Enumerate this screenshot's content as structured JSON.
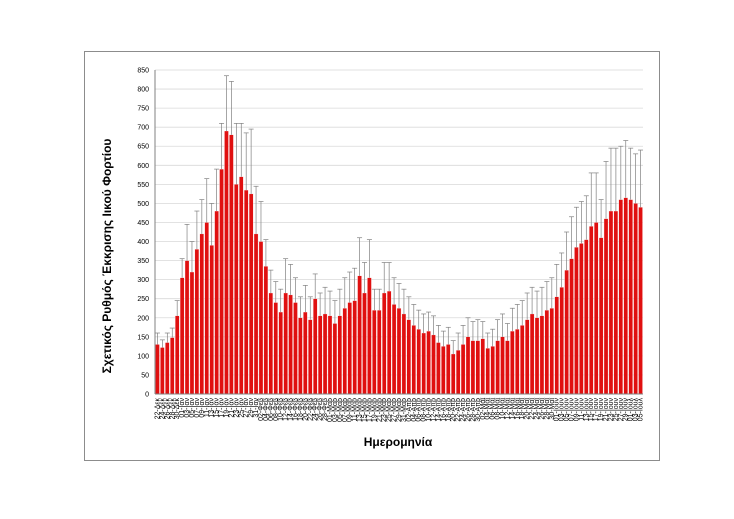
{
  "chart_data": {
    "type": "bar",
    "title": "",
    "xlabel": "Ημερομηνία",
    "ylabel": "Σχετικός Ρυθμός Έκκρισης Ιικού Φορτίου",
    "ylim": [
      0,
      850
    ],
    "yticks": [
      0,
      50,
      100,
      150,
      200,
      250,
      300,
      350,
      400,
      450,
      500,
      550,
      600,
      650,
      700,
      750,
      800,
      850
    ],
    "grid": true,
    "legend": "none",
    "error_bars": true,
    "colors": {
      "bar": "#e01010",
      "bar_edge": "#ffffff",
      "error_bar": "#808080",
      "grid": "#d9d9d9",
      "axis": "#808080"
    },
    "values": [
      130,
      122,
      135,
      148,
      205,
      305,
      350,
      320,
      380,
      420,
      450,
      390,
      480,
      590,
      690,
      680,
      550,
      570,
      535,
      525,
      420,
      400,
      335,
      265,
      240,
      215,
      265,
      260,
      240,
      200,
      215,
      195,
      250,
      205,
      210,
      205,
      185,
      205,
      225,
      240,
      245,
      310,
      265,
      305,
      220,
      220,
      265,
      270,
      235,
      225,
      210,
      195,
      180,
      170,
      160,
      165,
      155,
      135,
      125,
      130,
      105,
      115,
      130,
      150,
      140,
      140,
      145,
      120,
      125,
      140,
      150,
      140,
      165,
      170,
      180,
      195,
      210,
      200,
      205,
      220,
      225,
      255,
      280,
      325,
      355,
      385,
      395,
      405,
      440,
      450,
      410,
      460,
      480,
      480,
      510,
      515,
      510,
      500,
      490
    ],
    "errors": [
      30,
      20,
      25,
      25,
      40,
      50,
      95,
      80,
      100,
      90,
      115,
      110,
      110,
      120,
      145,
      140,
      160,
      140,
      150,
      170,
      125,
      105,
      70,
      60,
      55,
      60,
      90,
      80,
      65,
      55,
      70,
      60,
      65,
      60,
      70,
      65,
      60,
      70,
      80,
      80,
      85,
      100,
      80,
      100,
      55,
      55,
      80,
      75,
      70,
      65,
      65,
      60,
      55,
      50,
      50,
      50,
      50,
      45,
      40,
      45,
      35,
      45,
      50,
      50,
      50,
      55,
      45,
      40,
      45,
      55,
      60,
      45,
      60,
      65,
      65,
      70,
      70,
      70,
      75,
      75,
      80,
      85,
      90,
      100,
      110,
      105,
      110,
      115,
      140,
      130,
      100,
      150,
      165,
      165,
      140,
      150,
      135,
      130,
      150
    ],
    "tick_labels": [
      "22-Δεκ",
      "24-Δεκ",
      "26-Δεκ",
      "28-Δεκ",
      "30-Δεκ",
      "01-Ιαν",
      "03-Ιαν",
      "05-Ιαν",
      "07-Ιαν",
      "09-Ιαν",
      "11-Ιαν",
      "13-Ιαν",
      "15-Ιαν",
      "17-Ιαν",
      "19-Ιαν",
      "21-Ιαν",
      "23-Ιαν",
      "25-Ιαν",
      "27-Ιαν",
      "29-Ιαν",
      "31-Ιαν",
      "02-Φεβ",
      "04-Φεβ",
      "06-Φεβ",
      "08-Φεβ",
      "10-Φεβ",
      "12-Φεβ",
      "14-Φεβ",
      "16-Φεβ",
      "18-Φεβ",
      "20-Φεβ",
      "22-Φεβ",
      "24-Φεβ",
      "26-Φεβ",
      "28-Φεβ",
      "01-Μαρ",
      "03-Μαρ",
      "05-Μαρ",
      "07-Μαρ",
      "09-Μαρ",
      "11-Μαρ",
      "13-Μαρ",
      "15-Μαρ",
      "17-Μαρ",
      "19-Μαρ",
      "21-Μαρ",
      "23-Μαρ",
      "25-Μαρ",
      "27-Μαρ",
      "29-Μαρ",
      "31-Μαρ",
      "02-Απρ",
      "04-Απρ",
      "06-Απρ",
      "08-Απρ",
      "10-Απρ",
      "12-Απρ",
      "14-Απρ",
      "16-Απρ",
      "18-Απρ",
      "20-Απρ",
      "22-Απρ",
      "24-Απρ",
      "26-Απρ",
      "28-Απρ",
      "30-Απρ",
      "02-Μαϊ",
      "04-Μαϊ",
      "06-Μαϊ",
      "08-Μαϊ",
      "10-Μαϊ",
      "12-Μαϊ",
      "14-Μαϊ",
      "16-Μαϊ",
      "18-Μαϊ",
      "20-Μαϊ",
      "22-Μαϊ",
      "24-Μαϊ",
      "26-Μαϊ",
      "28-Μαϊ",
      "30-Μαϊ",
      "01-Ιουν",
      "03-Ιουν",
      "05-Ιουν",
      "07-Ιουν",
      "09-Ιουν",
      "11-Ιουν",
      "13-Ιουν",
      "15-Ιουν",
      "17-Ιουν",
      "19-Ιουν",
      "21-Ιουν",
      "23-Ιουν",
      "25-Ιουν",
      "27-Ιουν",
      "29-Ιουν",
      "01-Ιουλ",
      "03-Ιουλ",
      "05-Ιουλ"
    ]
  }
}
